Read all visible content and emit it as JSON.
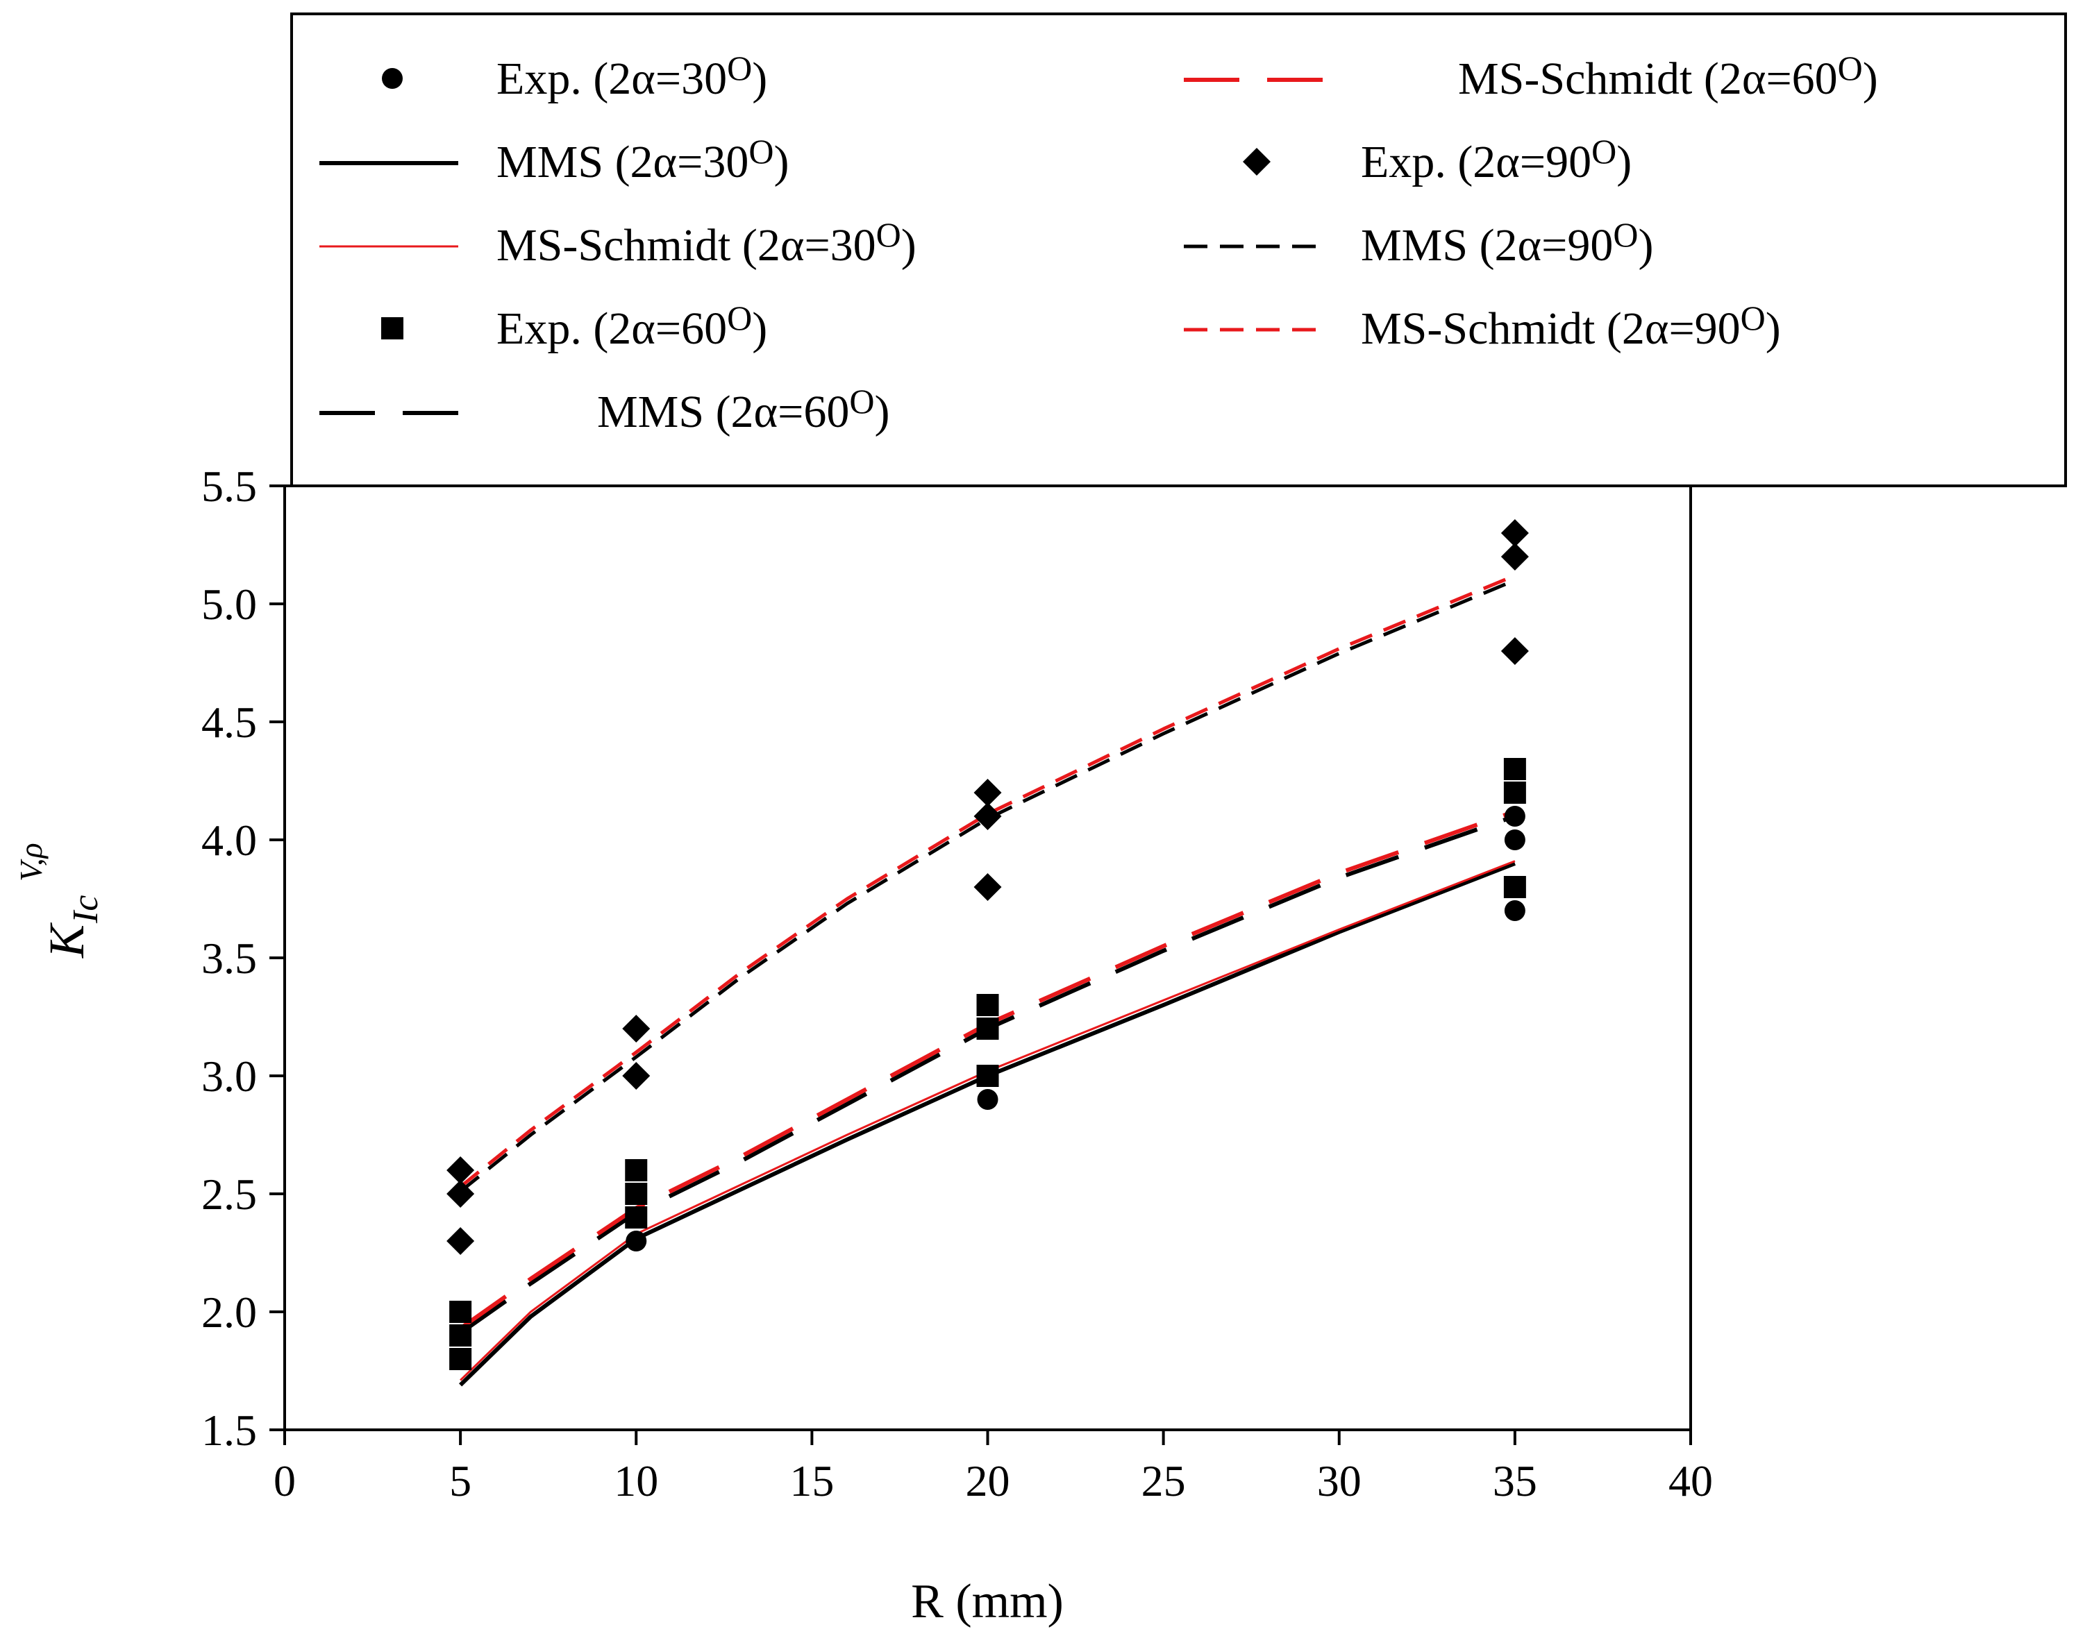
{
  "chart_data": {
    "type": "scatter",
    "xlabel": "R (mm)",
    "ylabel": {
      "main": "K",
      "subscript": "Ic",
      "superscript": "V,ρ"
    },
    "xlim": [
      0,
      40
    ],
    "ylim": [
      1.5,
      5.5
    ],
    "x_ticks": [
      "0",
      "5",
      "10",
      "15",
      "20",
      "25",
      "30",
      "35",
      "40"
    ],
    "y_ticks": [
      "1.5",
      "2.0",
      "2.5",
      "3.0",
      "3.5",
      "4.0",
      "4.5",
      "5.0",
      "5.5"
    ],
    "legend_position": "top",
    "series": [
      {
        "id": "exp30",
        "label": "Exp. (2α=30",
        "label_sup": "O",
        "label_end": ")",
        "kind": "scatter",
        "marker": "circle",
        "color": "#000000",
        "points": [
          [
            5,
            1.8
          ],
          [
            5,
            1.9
          ],
          [
            5,
            2.0
          ],
          [
            10,
            2.3
          ],
          [
            10,
            2.4
          ],
          [
            10,
            2.5
          ],
          [
            20,
            2.9
          ],
          [
            20,
            3.0
          ],
          [
            20,
            3.2
          ],
          [
            35,
            3.7
          ],
          [
            35,
            4.0
          ],
          [
            35,
            4.1
          ]
        ]
      },
      {
        "id": "mms30",
        "label": "MMS (2α=30",
        "label_sup": "O",
        "label_end": ")",
        "kind": "line",
        "color": "#000000",
        "dash": "solid",
        "width": 6,
        "points": [
          [
            5,
            1.69
          ],
          [
            7,
            1.98
          ],
          [
            10,
            2.31
          ],
          [
            13,
            2.52
          ],
          [
            16,
            2.73
          ],
          [
            20,
            3.0
          ],
          [
            25,
            3.3
          ],
          [
            30,
            3.61
          ],
          [
            35,
            3.9
          ]
        ]
      },
      {
        "id": "mss30",
        "label": "MS-Schmidt (2α=30",
        "label_sup": "O",
        "label_end": ")",
        "kind": "line",
        "color": "#e8191c",
        "dash": "solid",
        "width": 3,
        "points": [
          [
            5,
            1.71
          ],
          [
            7,
            2.0
          ],
          [
            10,
            2.33
          ],
          [
            13,
            2.54
          ],
          [
            16,
            2.75
          ],
          [
            20,
            3.02
          ],
          [
            25,
            3.32
          ],
          [
            30,
            3.62
          ],
          [
            35,
            3.91
          ]
        ]
      },
      {
        "id": "exp60",
        "label": "Exp. (2α=60",
        "label_sup": "O",
        "label_end": ")",
        "kind": "scatter",
        "marker": "square",
        "color": "#000000",
        "points": [
          [
            5,
            1.8
          ],
          [
            5,
            1.9
          ],
          [
            5,
            2.0
          ],
          [
            10,
            2.4
          ],
          [
            10,
            2.5
          ],
          [
            10,
            2.6
          ],
          [
            20,
            3.0
          ],
          [
            20,
            3.2
          ],
          [
            20,
            3.3
          ],
          [
            35,
            3.8
          ],
          [
            35,
            4.2
          ],
          [
            35,
            4.3
          ]
        ]
      },
      {
        "id": "mms60",
        "label": "MMS (2α=60",
        "label_sup": "O",
        "label_end": ")",
        "kind": "line",
        "color": "#000000",
        "dash": "long",
        "width": 6,
        "points": [
          [
            5,
            1.91
          ],
          [
            7,
            2.12
          ],
          [
            10,
            2.42
          ],
          [
            13,
            2.64
          ],
          [
            16,
            2.88
          ],
          [
            20,
            3.2
          ],
          [
            25,
            3.53
          ],
          [
            30,
            3.84
          ],
          [
            35,
            4.1
          ]
        ]
      },
      {
        "id": "mss60",
        "label": "MS-Schmidt (2α=60",
        "label_sup": "O",
        "label_end": ")",
        "kind": "line",
        "color": "#e8191c",
        "dash": "long",
        "width": 6,
        "points": [
          [
            5,
            1.93
          ],
          [
            7,
            2.14
          ],
          [
            10,
            2.44
          ],
          [
            13,
            2.66
          ],
          [
            16,
            2.9
          ],
          [
            20,
            3.22
          ],
          [
            25,
            3.55
          ],
          [
            30,
            3.86
          ],
          [
            35,
            4.12
          ]
        ]
      },
      {
        "id": "exp90",
        "label": "Exp. (2α=90",
        "label_sup": "O",
        "label_end": ")",
        "kind": "scatter",
        "marker": "diamond",
        "color": "#000000",
        "points": [
          [
            5,
            2.3
          ],
          [
            5,
            2.5
          ],
          [
            5,
            2.6
          ],
          [
            10,
            3.0
          ],
          [
            10,
            3.2
          ],
          [
            20,
            3.8
          ],
          [
            20,
            4.1
          ],
          [
            20,
            4.2
          ],
          [
            35,
            4.8
          ],
          [
            35,
            5.2
          ],
          [
            35,
            5.3
          ]
        ]
      },
      {
        "id": "mms90",
        "label": "MMS (2α=90",
        "label_sup": "O",
        "label_end": ")",
        "kind": "line",
        "color": "#000000",
        "dash": "short",
        "width": 5,
        "points": [
          [
            5,
            2.51
          ],
          [
            7,
            2.75
          ],
          [
            10,
            3.08
          ],
          [
            13,
            3.42
          ],
          [
            16,
            3.73
          ],
          [
            20,
            4.09
          ],
          [
            25,
            4.45
          ],
          [
            30,
            4.79
          ],
          [
            35,
            5.1
          ]
        ]
      },
      {
        "id": "mss90",
        "label": "MS-Schmidt (2α=90",
        "label_sup": "O",
        "label_end": ")",
        "kind": "line",
        "color": "#e8191c",
        "dash": "short",
        "width": 5,
        "points": [
          [
            5,
            2.53
          ],
          [
            7,
            2.77
          ],
          [
            10,
            3.1
          ],
          [
            13,
            3.44
          ],
          [
            16,
            3.75
          ],
          [
            20,
            4.11
          ],
          [
            25,
            4.47
          ],
          [
            30,
            4.81
          ],
          [
            35,
            5.12
          ]
        ]
      }
    ]
  }
}
